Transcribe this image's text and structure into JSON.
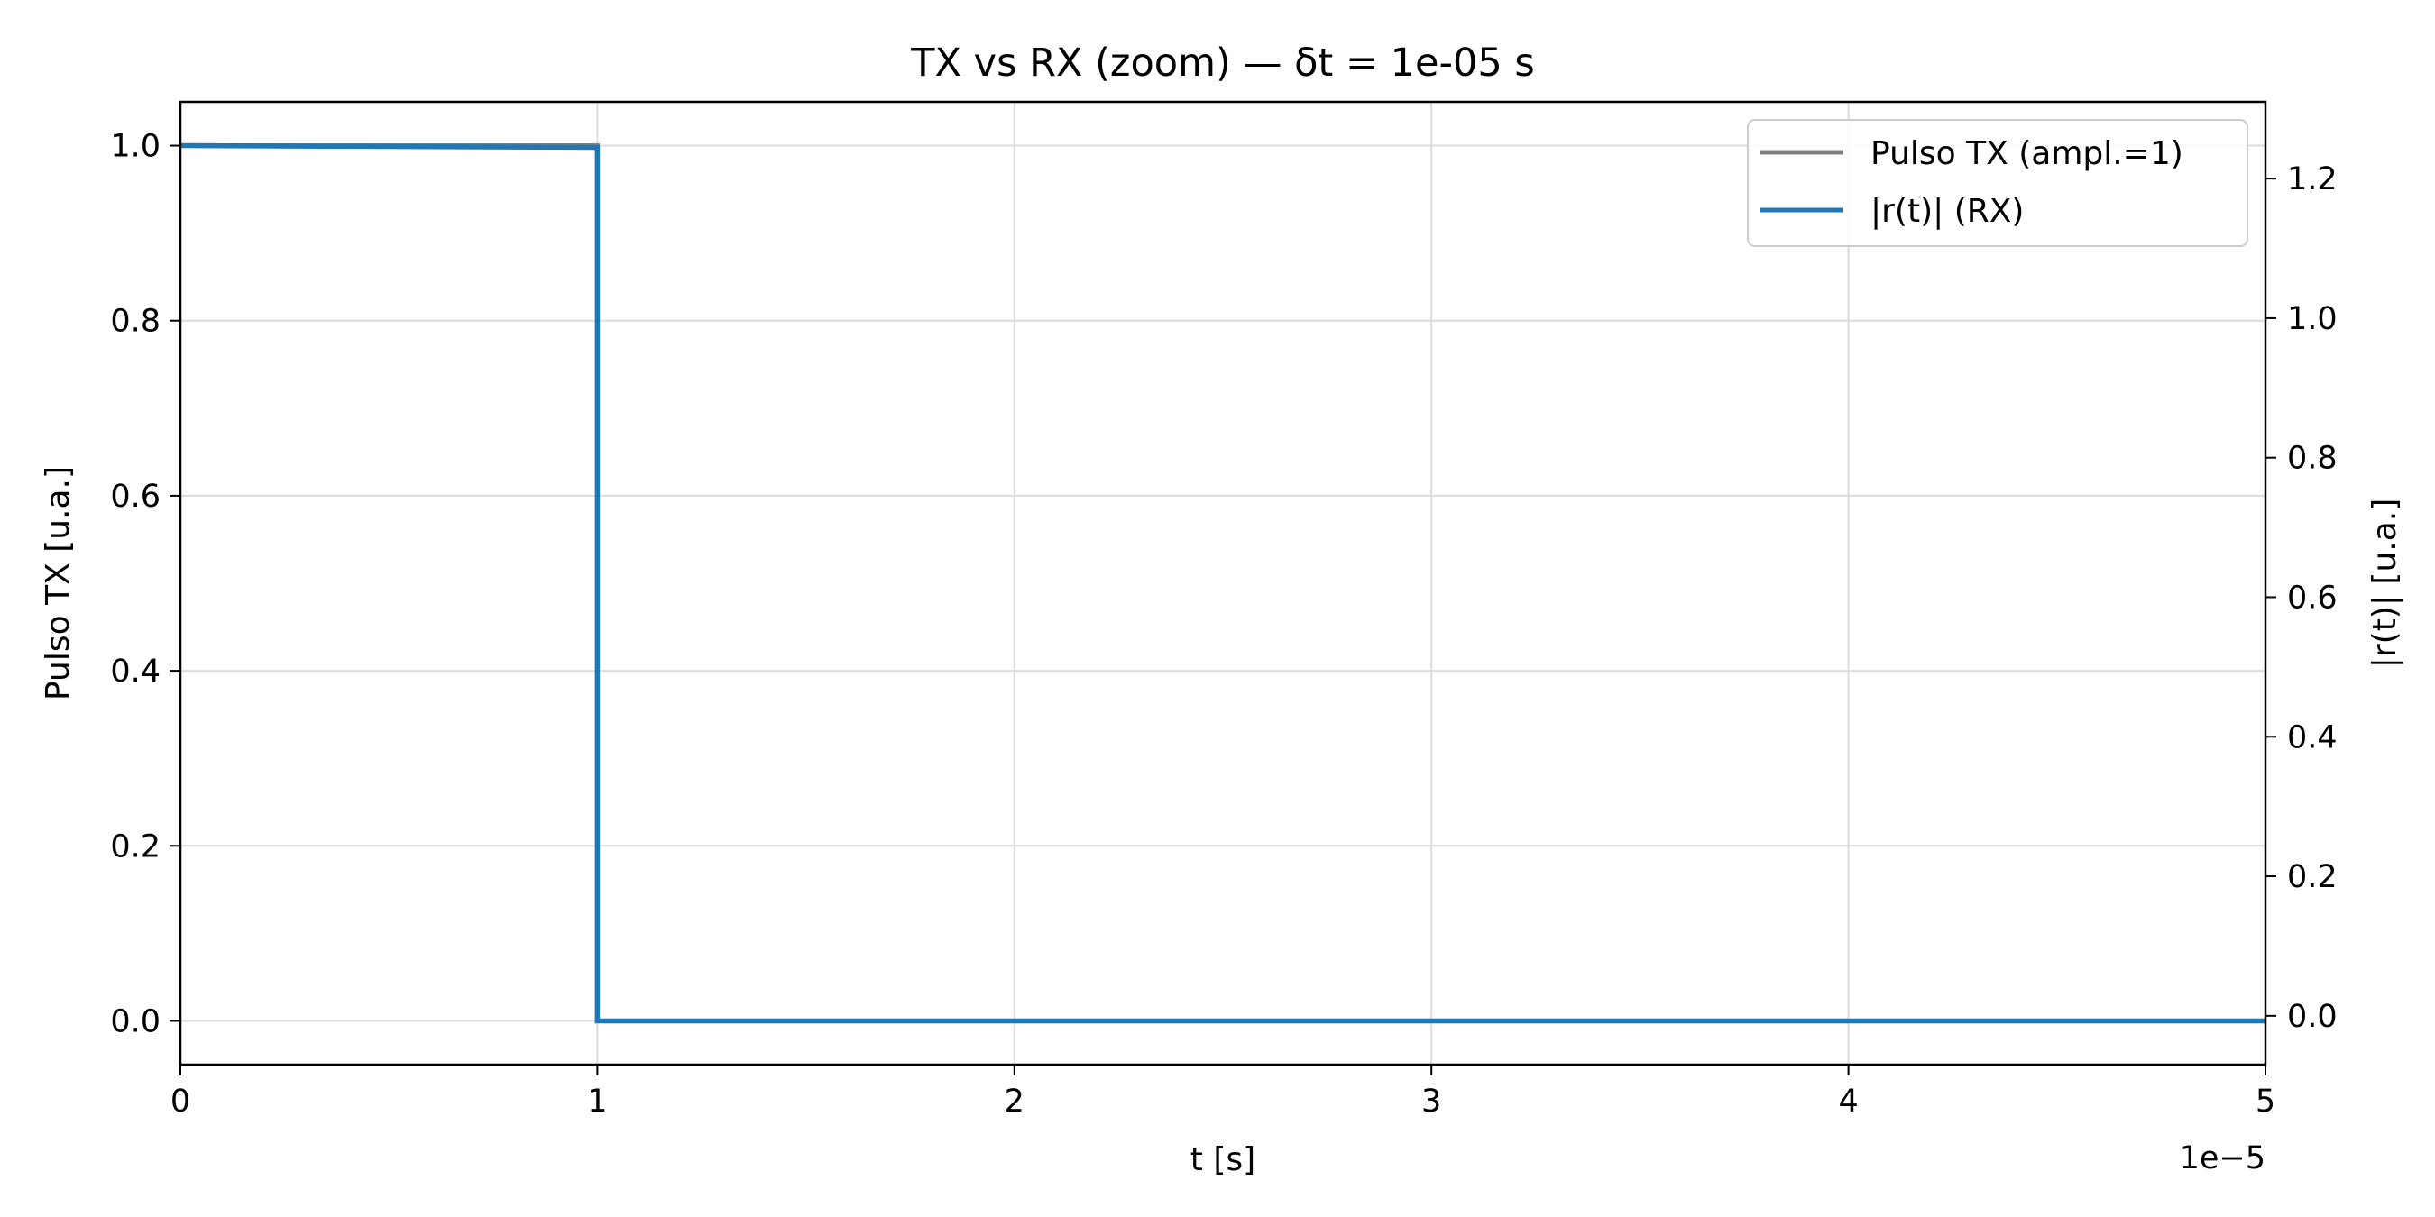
{
  "chart_data": {
    "type": "line",
    "title": "TX vs RX (zoom) — δt = 1e-05 s",
    "xlabel": "t [s]",
    "ylabel_left": "Pulso TX [u.a.]",
    "ylabel_right": "|r(t)| [u.a.]",
    "x_offset_label": "1e−5",
    "x_scale": 1e-05,
    "xlim": [
      0,
      5e-05
    ],
    "ylim_left": [
      -0.05,
      1.05
    ],
    "ylim_right": [
      -0.07,
      1.31
    ],
    "x_ticks": [
      0,
      1,
      2,
      3,
      4,
      5
    ],
    "y_ticks_left": [
      "0.0",
      "0.2",
      "0.4",
      "0.6",
      "0.8",
      "1.0"
    ],
    "y_ticks_right": [
      "0.0",
      "0.2",
      "0.4",
      "0.6",
      "0.8",
      "1.0",
      "1.2"
    ],
    "grid": true,
    "legend_position": "top-right",
    "series": [
      {
        "name": "Pulso TX (ampl.=1)",
        "axis": "left",
        "color": "#808080",
        "x": [
          0,
          1e-05,
          1e-05,
          5e-05
        ],
        "y": [
          1,
          1,
          0,
          0
        ]
      },
      {
        "name": "|r(t)| (RX)",
        "axis": "left",
        "color": "#1f77b4",
        "x": [
          0,
          1e-05,
          1e-05,
          5e-05
        ],
        "y": [
          1.0,
          0.998,
          0,
          0
        ]
      }
    ]
  }
}
